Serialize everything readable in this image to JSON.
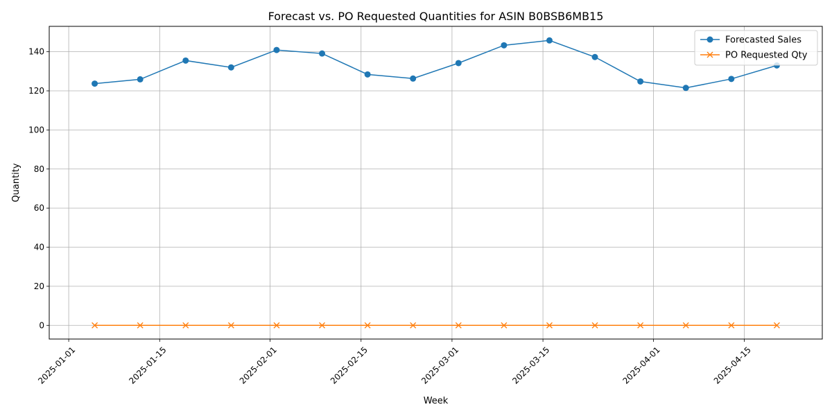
{
  "chart_data": {
    "type": "line",
    "title": "Forecast vs. PO Requested Quantities for ASIN B0BSB6MB15",
    "xlabel": "Week",
    "ylabel": "Quantity",
    "x": [
      "2025-01-05",
      "2025-01-12",
      "2025-01-19",
      "2025-01-26",
      "2025-02-02",
      "2025-02-09",
      "2025-02-16",
      "2025-02-23",
      "2025-03-02",
      "2025-03-09",
      "2025-03-16",
      "2025-03-23",
      "2025-03-30",
      "2025-04-06",
      "2025-04-13",
      "2025-04-20"
    ],
    "x_ticks": [
      "2025-01-01",
      "2025-01-15",
      "2025-02-01",
      "2025-02-15",
      "2025-03-01",
      "2025-03-15",
      "2025-04-01",
      "2025-04-15"
    ],
    "xlim": [
      "2024-12-29",
      "2025-04-27"
    ],
    "ylim": [
      -7,
      153
    ],
    "y_ticks": [
      0,
      20,
      40,
      60,
      80,
      100,
      120,
      140
    ],
    "grid": true,
    "legend_position": "top-right",
    "series": [
      {
        "name": "Forecasted Sales",
        "color": "#1f77b4",
        "marker": "circle",
        "values": [
          123.7,
          125.9,
          135.5,
          132.0,
          140.9,
          139.1,
          128.4,
          126.3,
          134.2,
          143.3,
          145.8,
          137.3,
          124.8,
          121.5,
          126.1,
          133.0
        ]
      },
      {
        "name": "PO Requested Qty",
        "color": "#ff7f0e",
        "marker": "x",
        "values": [
          0,
          0,
          0,
          0,
          0,
          0,
          0,
          0,
          0,
          0,
          0,
          0,
          0,
          0,
          0,
          0
        ]
      }
    ]
  }
}
